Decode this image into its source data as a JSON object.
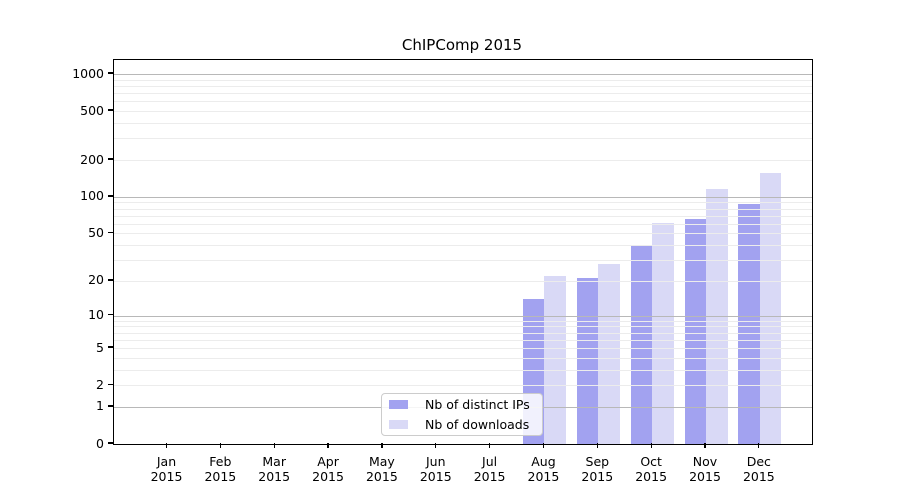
{
  "title": "ChIPComp 2015",
  "legend": {
    "items": [
      {
        "label": "Nb of distinct IPs",
        "color": "#a2a2f0"
      },
      {
        "label": "Nb of downloads",
        "color": "#d9d9f6"
      }
    ]
  },
  "chart_data": {
    "type": "bar",
    "title": "ChIPComp 2015",
    "categories": [
      {
        "month": "Jan",
        "year": "2015"
      },
      {
        "month": "Feb",
        "year": "2015"
      },
      {
        "month": "Mar",
        "year": "2015"
      },
      {
        "month": "Apr",
        "year": "2015"
      },
      {
        "month": "May",
        "year": "2015"
      },
      {
        "month": "Jun",
        "year": "2015"
      },
      {
        "month": "Jul",
        "year": "2015"
      },
      {
        "month": "Aug",
        "year": "2015"
      },
      {
        "month": "Sep",
        "year": "2015"
      },
      {
        "month": "Oct",
        "year": "2015"
      },
      {
        "month": "Nov",
        "year": "2015"
      },
      {
        "month": "Dec",
        "year": "2015"
      }
    ],
    "series": [
      {
        "name": "Nb of distinct IPs",
        "color": "#a2a2f0",
        "values": [
          0,
          0,
          0,
          0,
          0,
          0,
          0,
          14,
          21,
          39,
          66,
          87
        ]
      },
      {
        "name": "Nb of downloads",
        "color": "#d9d9f6",
        "values": [
          0,
          0,
          0,
          0,
          0,
          0,
          0,
          22,
          28,
          61,
          117,
          158
        ]
      }
    ],
    "xlabel": "",
    "ylabel": "",
    "yscale": "log1p",
    "yticks": [
      0,
      1,
      2,
      5,
      10,
      20,
      50,
      100,
      200,
      500,
      1000
    ],
    "ylim": [
      0,
      1300
    ],
    "grid": {
      "horizontal": true,
      "minor_color": "#ececec",
      "major_color": "#b8b8b8",
      "grid_above_bars": true
    },
    "legend_position": "bottom-center-left"
  }
}
